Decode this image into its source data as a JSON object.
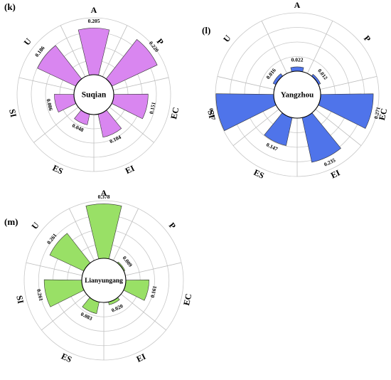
{
  "chart_data": [
    {
      "type": "polar-bar",
      "panel": "(k)",
      "center_label": "Suqian",
      "color": "#d986f0",
      "categories": [
        "A",
        "P",
        "EC",
        "EI",
        "ES",
        "SI",
        "U"
      ],
      "values": [
        0.205,
        0.22,
        0.151,
        0.104,
        0.048,
        0.086,
        0.186
      ],
      "value_labels": [
        "0.205",
        "0.220",
        "0.151",
        "0.104",
        "0.048",
        "0.086",
        "0.186"
      ],
      "rlim": [
        0,
        0.25
      ]
    },
    {
      "type": "polar-bar",
      "panel": "(l)",
      "center_label": "Yangzhou",
      "color": "#4f74ea",
      "categories": [
        "A",
        "P",
        "EC",
        "EI",
        "ES",
        "SI",
        "U"
      ],
      "values": [
        0.022,
        0.012,
        0.271,
        0.235,
        0.147,
        0.297,
        0.016
      ],
      "value_labels": [
        "0.022",
        "0.012",
        "0.271",
        "0.235",
        "0.147",
        "0.297",
        "0.016"
      ],
      "rlim": [
        0,
        0.3
      ]
    },
    {
      "type": "polar-bar",
      "panel": "(m)",
      "center_label": "Lianyungang",
      "color": "#99e066",
      "categories": [
        "A",
        "P",
        "EC",
        "EI",
        "ES",
        "SI",
        "U"
      ],
      "values": [
        0.378,
        0.009,
        0.161,
        0.02,
        0.083,
        0.261,
        0.261
      ],
      "value_labels": [
        "0.378",
        "0.009",
        "0.161",
        "0.020",
        "0.083",
        "0.261",
        "0.261"
      ],
      "rlim": [
        0,
        0.4
      ]
    }
  ]
}
